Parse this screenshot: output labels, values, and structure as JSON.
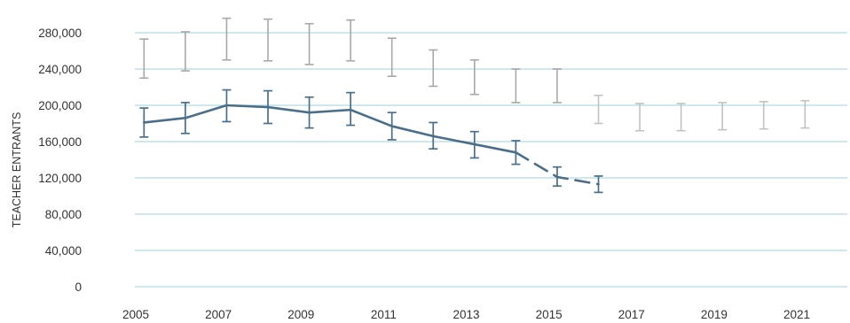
{
  "chart_data": {
    "type": "line",
    "title": "",
    "xlabel": "",
    "ylabel": "TEACHER ENTRANTS",
    "xlim": [
      2005,
      2022.5
    ],
    "ylim": [
      0,
      280000
    ],
    "x_ticks": [
      "2005",
      "2007",
      "2009",
      "2011",
      "2013",
      "2015",
      "2017",
      "2019",
      "2021"
    ],
    "y_ticks": [
      "0",
      "40,000",
      "80,000",
      "120,000",
      "160,000",
      "200,000",
      "240,000",
      "280,000"
    ],
    "grid": "horizontal",
    "colors": {
      "line": "#4a6f8a",
      "upper_band": "#a8a8a8",
      "upper_band_late": "#c2c2c2",
      "grid": "#bfe0e8",
      "text": "#333333"
    },
    "series": [
      {
        "style": "solid line with error bars",
        "points": [
          {
            "x": 2005.2,
            "y": 181000,
            "low": 165000,
            "high": 197000
          },
          {
            "x": 2006.2,
            "y": 186000,
            "low": 169000,
            "high": 203000
          },
          {
            "x": 2007.2,
            "y": 200000,
            "low": 182000,
            "high": 217000
          },
          {
            "x": 2008.2,
            "y": 198000,
            "low": 180000,
            "high": 216000
          },
          {
            "x": 2009.2,
            "y": 192000,
            "low": 175000,
            "high": 209000
          },
          {
            "x": 2010.2,
            "y": 195000,
            "low": 178000,
            "high": 214000
          },
          {
            "x": 2011.2,
            "y": 177000,
            "low": 162000,
            "high": 192000
          },
          {
            "x": 2012.2,
            "y": 166000,
            "low": 152000,
            "high": 181000
          },
          {
            "x": 2013.2,
            "y": 157000,
            "low": 142000,
            "high": 171000
          },
          {
            "x": 2014.2,
            "y": 148000,
            "low": 135000,
            "high": 161000
          }
        ]
      },
      {
        "style": "dashed line with error bars",
        "points": [
          {
            "x": 2014.2,
            "y": 148000
          },
          {
            "x": 2015.2,
            "y": 121000,
            "low": 111000,
            "high": 132000
          },
          {
            "x": 2016.2,
            "y": 113000,
            "low": 104000,
            "high": 122000
          }
        ]
      },
      {
        "style": "error bars only",
        "points": [
          {
            "x": 2005.2,
            "low": 230000,
            "high": 273000
          },
          {
            "x": 2006.2,
            "low": 238000,
            "high": 281000
          },
          {
            "x": 2007.2,
            "low": 250000,
            "high": 296000
          },
          {
            "x": 2008.2,
            "low": 249000,
            "high": 295000
          },
          {
            "x": 2009.2,
            "low": 245000,
            "high": 290000
          },
          {
            "x": 2010.2,
            "low": 249000,
            "high": 294000
          },
          {
            "x": 2011.2,
            "low": 232000,
            "high": 274000
          },
          {
            "x": 2012.2,
            "low": 221000,
            "high": 261000
          },
          {
            "x": 2013.2,
            "low": 212000,
            "high": 250000
          },
          {
            "x": 2014.2,
            "low": 203000,
            "high": 240000
          },
          {
            "x": 2015.2,
            "low": 203000,
            "high": 240000
          },
          {
            "x": 2016.2,
            "low": 180000,
            "high": 211000
          },
          {
            "x": 2017.2,
            "low": 172000,
            "high": 202000
          },
          {
            "x": 2018.2,
            "low": 172000,
            "high": 202000
          },
          {
            "x": 2019.2,
            "low": 173000,
            "high": 203000
          },
          {
            "x": 2020.2,
            "low": 174000,
            "high": 204000
          },
          {
            "x": 2021.2,
            "low": 175000,
            "high": 205000
          }
        ]
      }
    ]
  }
}
